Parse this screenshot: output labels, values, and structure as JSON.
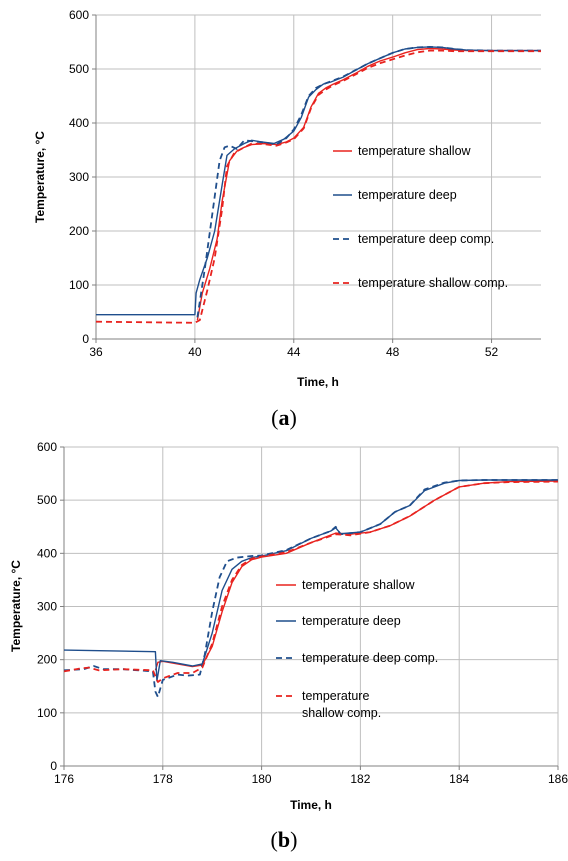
{
  "chart_data": [
    {
      "type": "line",
      "panel_label": "a",
      "xlabel": "Time, h",
      "ylabel": "Temperature, °C",
      "xlim": [
        36,
        54
      ],
      "ylim": [
        0,
        600
      ],
      "xticks": [
        36,
        40,
        44,
        48,
        52
      ],
      "yticks": [
        0,
        100,
        200,
        300,
        400,
        500,
        600
      ],
      "grid": true,
      "legend_position": "right",
      "series": [
        {
          "name": "temperature shallow",
          "color": "#e8231f",
          "dash": "solid",
          "x": [
            40.1,
            40.3,
            40.6,
            40.9,
            41.1,
            41.4,
            41.7,
            42.0,
            42.3,
            42.8,
            43.3,
            43.7,
            44.0,
            44.4,
            44.7,
            45.0,
            45.3,
            45.6,
            46.0,
            46.5,
            47.0,
            47.5,
            48.0,
            48.5,
            49.0,
            49.5,
            50.0,
            50.5,
            51.0,
            52.0,
            53.0,
            54.0
          ],
          "y": [
            35,
            85,
            130,
            185,
            255,
            330,
            348,
            355,
            360,
            362,
            360,
            365,
            372,
            392,
            430,
            455,
            465,
            472,
            480,
            492,
            505,
            515,
            522,
            530,
            536,
            538,
            537,
            535,
            534,
            534,
            534,
            534
          ]
        },
        {
          "name": "temperature deep",
          "color": "#1f4e8c",
          "dash": "solid",
          "x": [
            36.0,
            40.0,
            40.05,
            40.2,
            40.5,
            40.8,
            41.1,
            41.3,
            41.6,
            42.0,
            42.3,
            42.7,
            43.2,
            43.6,
            44.0,
            44.3,
            44.6,
            44.9,
            45.2,
            45.5,
            46.0,
            46.5,
            47.0,
            47.5,
            48.0,
            48.5,
            49.0,
            49.5,
            50.0,
            50.5,
            51.0,
            52.0,
            53.0,
            54.0
          ],
          "y": [
            45,
            45,
            85,
            110,
            150,
            200,
            285,
            340,
            352,
            362,
            368,
            365,
            362,
            370,
            385,
            410,
            448,
            462,
            472,
            476,
            485,
            498,
            510,
            520,
            530,
            537,
            540,
            541,
            540,
            537,
            535,
            534,
            534,
            534
          ]
        },
        {
          "name": "temperature deep comp.",
          "color": "#1f4e8c",
          "dash": "dashed",
          "x": [
            40.1,
            40.4,
            40.7,
            41.0,
            41.2,
            41.4,
            41.7,
            42.0,
            42.4,
            42.8,
            43.3,
            43.7,
            44.0,
            44.3,
            44.6,
            44.9,
            45.2,
            45.5,
            46.0,
            46.5,
            47.0,
            47.5,
            48.0,
            48.5,
            49.0,
            49.5,
            50.0,
            50.5,
            51.0,
            52.0,
            53.0,
            54.0
          ],
          "y": [
            40,
            130,
            230,
            330,
            355,
            358,
            352,
            368,
            366,
            364,
            360,
            372,
            388,
            415,
            450,
            465,
            472,
            477,
            486,
            498,
            510,
            520,
            530,
            537,
            540,
            541,
            540,
            537,
            535,
            534,
            534,
            534
          ]
        },
        {
          "name": "temperature shallow comp.",
          "color": "#e8231f",
          "dash": "dashed",
          "x": [
            36.0,
            40.0,
            40.2,
            40.5,
            40.8,
            41.1,
            41.3,
            41.6,
            42.0,
            42.3,
            42.8,
            43.3,
            43.7,
            44.0,
            44.4,
            44.7,
            45.0,
            45.3,
            45.6,
            46.0,
            46.5,
            47.0,
            47.5,
            48.0,
            48.5,
            49.0,
            49.5,
            50.0,
            50.5,
            51.0,
            52.0,
            53.0,
            54.0
          ],
          "y": [
            32,
            30,
            35,
            90,
            150,
            240,
            320,
            345,
            355,
            362,
            361,
            358,
            364,
            370,
            390,
            428,
            452,
            462,
            470,
            478,
            490,
            502,
            511,
            518,
            525,
            531,
            534,
            534,
            533,
            533,
            533,
            533,
            533
          ]
        }
      ]
    },
    {
      "type": "line",
      "panel_label": "b",
      "xlabel": "Time, h",
      "ylabel": "Temperature, °C",
      "xlim": [
        176,
        186
      ],
      "ylim": [
        0,
        600
      ],
      "xticks": [
        176,
        178,
        180,
        182,
        184,
        186
      ],
      "yticks": [
        0,
        100,
        200,
        300,
        400,
        500,
        600
      ],
      "grid": true,
      "legend_position": "right",
      "series": [
        {
          "name": "temperature shallow",
          "color": "#e8231f",
          "dash": "solid",
          "x": [
            177.85,
            177.9,
            178.0,
            178.3,
            178.6,
            178.8,
            179.0,
            179.2,
            179.4,
            179.6,
            179.8,
            180.0,
            180.5,
            181.0,
            181.5,
            181.8,
            182.2,
            182.6,
            183.0,
            183.5,
            184.0,
            184.5,
            185.0,
            186.0
          ],
          "y": [
            180,
            195,
            197,
            192,
            187,
            190,
            225,
            290,
            345,
            375,
            388,
            393,
            400,
            420,
            438,
            436,
            440,
            452,
            470,
            500,
            525,
            532,
            535,
            536
          ]
        },
        {
          "name": "temperature deep",
          "color": "#1f4e8c",
          "dash": "solid",
          "x": [
            176.0,
            177.85,
            177.88,
            177.95,
            178.2,
            178.6,
            178.8,
            179.0,
            179.2,
            179.4,
            179.6,
            179.8,
            180.0,
            180.5,
            181.0,
            181.4,
            181.5,
            181.6,
            182.0,
            182.4,
            182.7,
            183.0,
            183.3,
            183.7,
            184.0,
            184.5,
            185.0,
            186.0
          ],
          "y": [
            218,
            215,
            160,
            198,
            195,
            188,
            192,
            250,
            330,
            370,
            385,
            392,
            395,
            405,
            428,
            442,
            448,
            437,
            440,
            455,
            478,
            490,
            518,
            532,
            537,
            538,
            538,
            538
          ]
        },
        {
          "name": "temperature deep comp.",
          "color": "#1f4e8c",
          "dash": "dashed",
          "x": [
            176.0,
            176.4,
            176.6,
            176.8,
            177.2,
            177.8,
            177.85,
            177.9,
            178.0,
            178.3,
            178.5,
            178.75,
            178.85,
            179.0,
            179.15,
            179.3,
            179.5,
            179.8,
            180.0,
            180.5,
            181.0,
            181.4,
            181.5,
            181.6,
            182.0,
            182.4,
            182.7,
            183.0,
            183.3,
            183.7,
            184.0,
            184.5,
            185.0,
            186.0
          ],
          "y": [
            180,
            182,
            188,
            182,
            182,
            178,
            140,
            130,
            162,
            172,
            170,
            172,
            210,
            290,
            355,
            385,
            392,
            395,
            396,
            406,
            428,
            442,
            450,
            436,
            440,
            455,
            478,
            490,
            520,
            533,
            537,
            538,
            538,
            538
          ]
        },
        {
          "name": "temperature shallow comp.",
          "color": "#e8231f",
          "dash": "dashed",
          "x": [
            176.0,
            176.3,
            176.5,
            176.7,
            177.2,
            177.8,
            177.9,
            178.0,
            178.3,
            178.6,
            178.8,
            179.0,
            179.2,
            179.4,
            179.6,
            179.8,
            180.0,
            180.5,
            181.0,
            181.5,
            181.8,
            182.2,
            182.6,
            183.0,
            183.5,
            184.0,
            184.5,
            185.0,
            186.0
          ],
          "y": [
            178,
            183,
            185,
            180,
            182,
            180,
            158,
            165,
            175,
            175,
            185,
            230,
            300,
            350,
            378,
            390,
            394,
            402,
            420,
            436,
            434,
            440,
            452,
            470,
            500,
            525,
            532,
            534,
            535
          ]
        }
      ]
    }
  ]
}
